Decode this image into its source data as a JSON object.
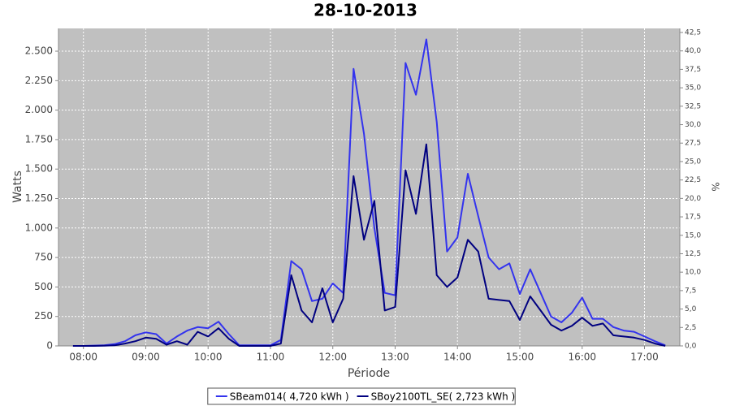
{
  "chart_data": {
    "type": "line",
    "title": "28-10-2013",
    "xlabel": "Période",
    "ylabel": "Watts",
    "y2label": "%",
    "x": [
      "07:50",
      "08:00",
      "08:10",
      "08:20",
      "08:30",
      "08:40",
      "08:50",
      "09:00",
      "09:10",
      "09:20",
      "09:30",
      "09:40",
      "09:50",
      "10:00",
      "10:10",
      "10:20",
      "10:30",
      "10:40",
      "10:50",
      "11:00",
      "11:10",
      "11:20",
      "11:30",
      "11:40",
      "11:50",
      "12:00",
      "12:10",
      "12:20",
      "12:30",
      "12:40",
      "12:50",
      "13:00",
      "13:10",
      "13:20",
      "13:30",
      "13:40",
      "13:50",
      "14:00",
      "14:10",
      "14:20",
      "14:30",
      "14:40",
      "14:50",
      "15:00",
      "15:10",
      "15:20",
      "15:30",
      "15:40",
      "15:50",
      "16:00",
      "16:10",
      "16:20",
      "16:30",
      "16:40",
      "16:50",
      "17:00",
      "17:10",
      "17:20"
    ],
    "series": [
      {
        "name": "SBeam014( 4,720 kWh )",
        "color": "#3333ee",
        "values": [
          0,
          0,
          3,
          5,
          15,
          40,
          90,
          115,
          100,
          20,
          80,
          130,
          160,
          150,
          205,
          100,
          5,
          5,
          5,
          5,
          50,
          720,
          650,
          380,
          400,
          530,
          450,
          2350,
          1800,
          1000,
          450,
          430,
          2400,
          2130,
          2600,
          1900,
          800,
          920,
          1460,
          1100,
          750,
          650,
          700,
          440,
          650,
          450,
          250,
          200,
          280,
          410,
          230,
          230,
          160,
          130,
          120,
          80,
          40,
          5
        ]
      },
      {
        "name": "SBoy2100TL_SE( 2,723 kWh )",
        "color": "#000080",
        "values": [
          0,
          0,
          0,
          2,
          5,
          20,
          40,
          70,
          60,
          10,
          40,
          10,
          120,
          80,
          150,
          60,
          0,
          0,
          0,
          0,
          20,
          600,
          300,
          200,
          490,
          200,
          400,
          1440,
          900,
          1230,
          300,
          330,
          1490,
          1120,
          1710,
          600,
          500,
          580,
          900,
          800,
          400,
          390,
          380,
          220,
          420,
          300,
          180,
          130,
          170,
          240,
          170,
          190,
          90,
          80,
          70,
          50,
          20,
          0
        ]
      }
    ],
    "xlim": [
      "07:36",
      "17:34"
    ],
    "xticks": [
      "08:00",
      "09:00",
      "10:00",
      "11:00",
      "12:00",
      "13:00",
      "14:00",
      "15:00",
      "16:00",
      "17:00"
    ],
    "ylim": [
      0,
      2693
    ],
    "yticks": [
      0,
      250,
      500,
      750,
      {
        "value": 1000,
        "label": "1.000"
      },
      {
        "value": 1250,
        "label": "1.250"
      },
      {
        "value": 1500,
        "label": "1.500"
      },
      {
        "value": 1750,
        "label": "1.750"
      },
      {
        "value": 2000,
        "label": "2.000"
      },
      {
        "value": 2250,
        "label": "2.250"
      },
      {
        "value": 2500,
        "label": "2.500"
      }
    ],
    "y2lim": [
      0,
      43.05
    ],
    "y2ticks": [
      {
        "value": 0,
        "label": "0,0"
      },
      {
        "value": 2.5,
        "label": "2,5"
      },
      {
        "value": 5,
        "label": "5,0"
      },
      {
        "value": 7.5,
        "label": "7,5"
      },
      {
        "value": 10,
        "label": "10,0"
      },
      {
        "value": 12.5,
        "label": "12,5"
      },
      {
        "value": 15,
        "label": "15,0"
      },
      {
        "value": 17.5,
        "label": "17,5"
      },
      {
        "value": 20,
        "label": "20,0"
      },
      {
        "value": 22.5,
        "label": "22,5"
      },
      {
        "value": 25,
        "label": "25,0"
      },
      {
        "value": 27.5,
        "label": "27,5"
      },
      {
        "value": 30,
        "label": "30,0"
      },
      {
        "value": 32.5,
        "label": "32,5"
      },
      {
        "value": 35,
        "label": "35,0"
      },
      {
        "value": 37.5,
        "label": "37,5"
      },
      {
        "value": 40,
        "label": "40,0"
      },
      {
        "value": 42.5,
        "label": "42,5"
      }
    ],
    "grid": true,
    "legend": "bottom"
  }
}
